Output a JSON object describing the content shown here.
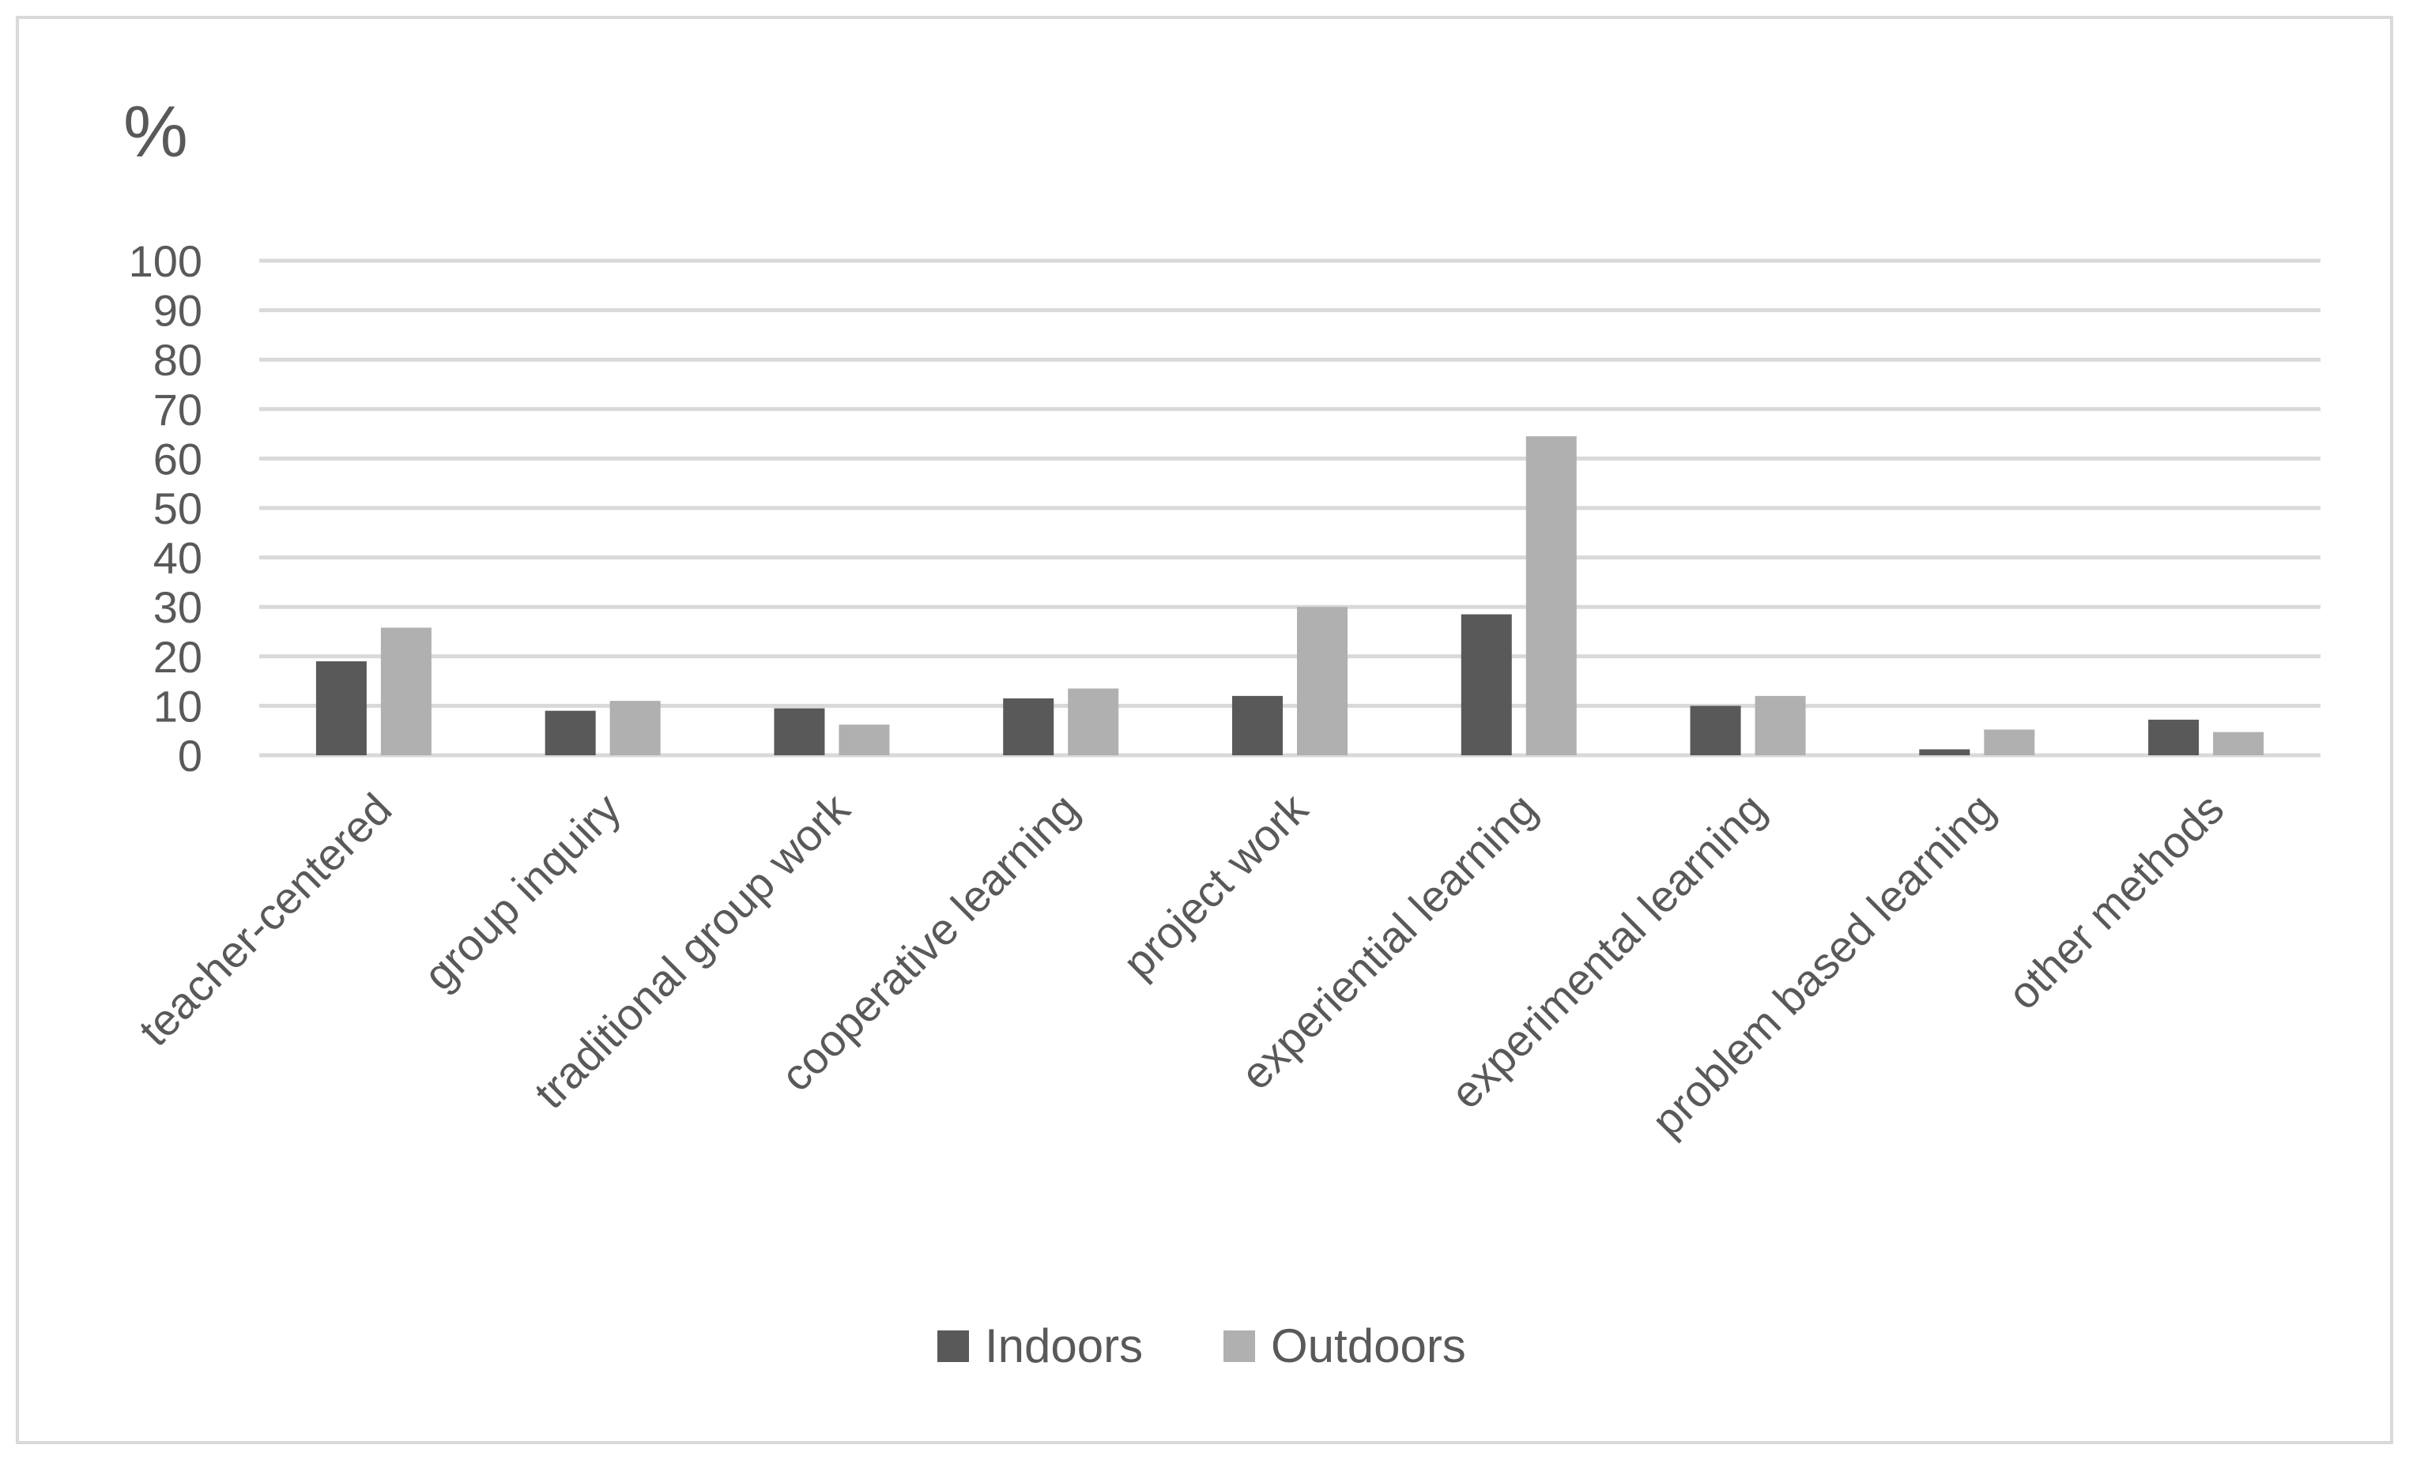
{
  "chart_data": {
    "type": "bar",
    "unit_label": "%",
    "categories": [
      "teacher-centered",
      "group inquiry",
      "traditional group work",
      "cooperative learning",
      "project work",
      "experiential learning",
      "experimental learning",
      "problem based learning",
      "other methods"
    ],
    "series": [
      {
        "name": "Indoors",
        "color": "#595959",
        "values": [
          19,
          9,
          9.5,
          11.5,
          12,
          28.5,
          10,
          1.2,
          7.2
        ]
      },
      {
        "name": "Outdoors",
        "color": "#b0b0b0",
        "values": [
          25.8,
          11,
          6.2,
          13.5,
          30,
          64.5,
          12,
          5.2,
          4.7
        ]
      }
    ],
    "ylim": [
      0,
      100
    ],
    "yticks": [
      0,
      10,
      20,
      30,
      40,
      50,
      60,
      70,
      80,
      90,
      100
    ],
    "grid": true,
    "legend_position": "bottom"
  }
}
